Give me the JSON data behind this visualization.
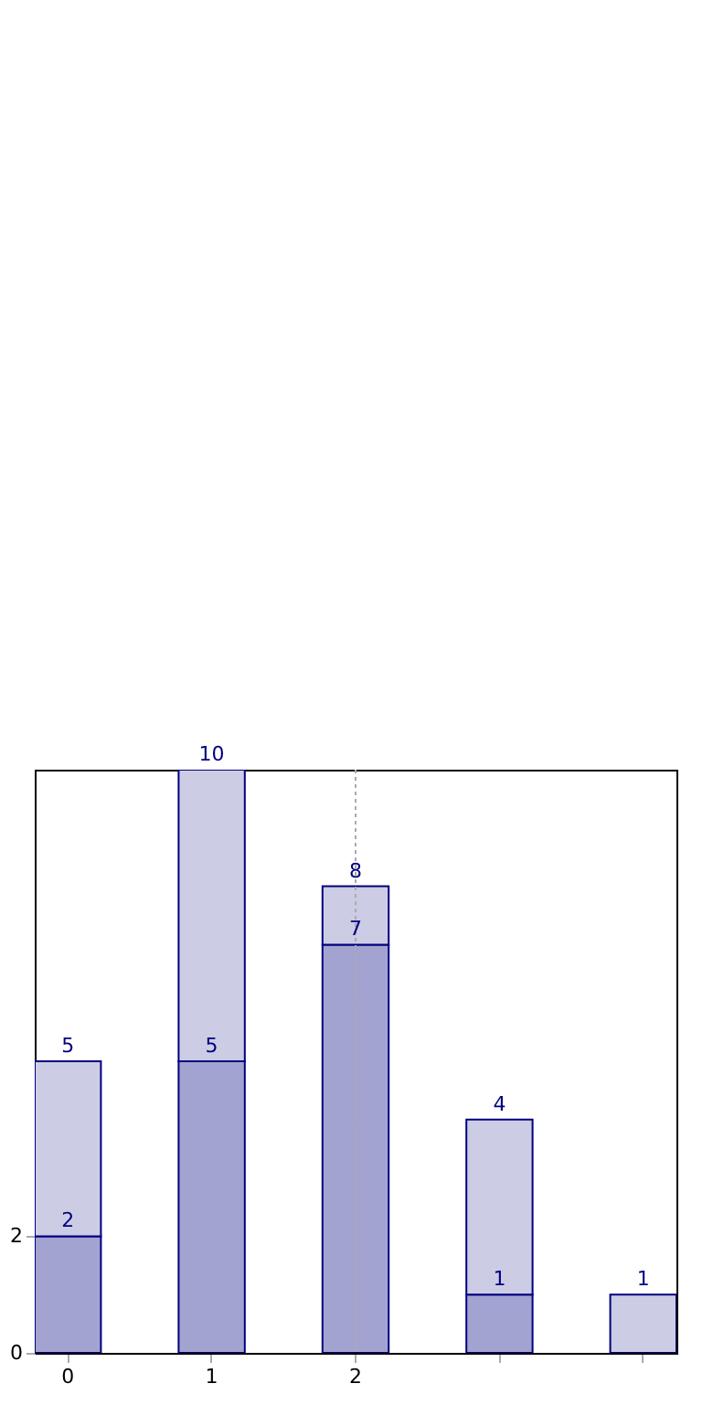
{
  "chart_data": {
    "type": "bar",
    "categories": [
      "0",
      "1",
      "2",
      null,
      null
    ],
    "stacked": true,
    "series": [
      {
        "color": "#a3a3d1",
        "values": [
          2,
          5,
          7,
          1,
          null
        ],
        "value_labels": [
          "2",
          "5",
          "7",
          "1",
          null
        ]
      },
      {
        "color": "#ccccE5",
        "values": [
          3,
          5,
          1,
          3,
          1
        ]
      }
    ],
    "totals": [
      "5",
      "10",
      "8",
      "4",
      "1"
    ],
    "ylim": [
      0,
      10
    ],
    "yticks": [
      0,
      2
    ],
    "grid": false,
    "ref_lines": [
      {
        "axis": "x",
        "value": "2",
        "color": "#aaaaaa",
        "line_style": "dotted"
      }
    ]
  }
}
